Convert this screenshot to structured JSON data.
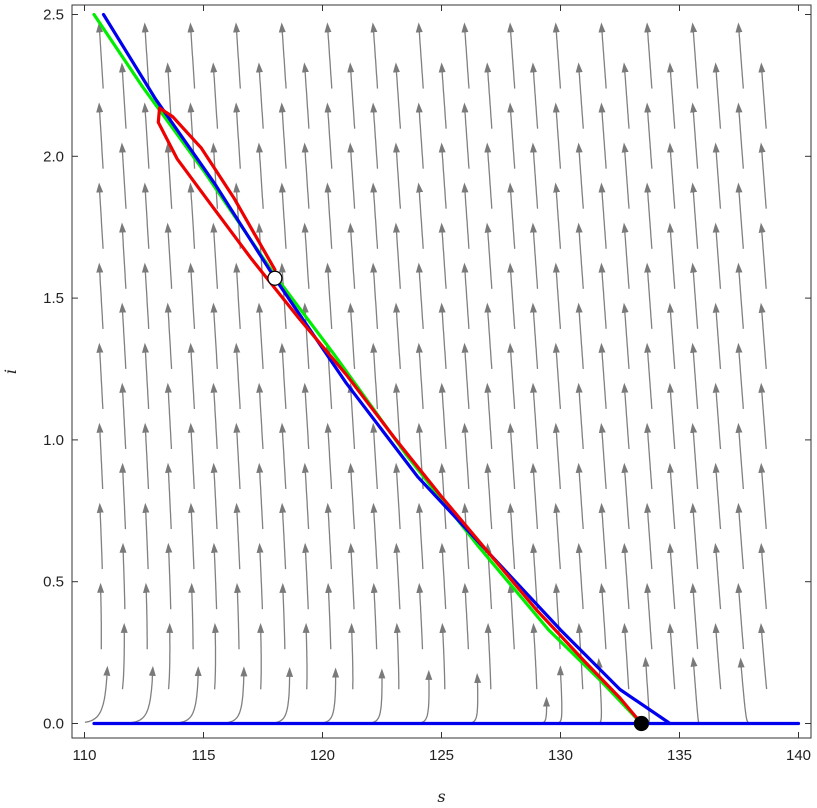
{
  "chart_data": {
    "type": "line",
    "title": "",
    "xlabel": "s",
    "ylabel": "i",
    "xlim": [
      110,
      140
    ],
    "ylim": [
      0,
      2.5
    ],
    "x_ticks": [
      "110",
      "115",
      "120",
      "125",
      "130",
      "135",
      "140"
    ],
    "y_ticks": [
      "0.0",
      "0.5",
      "1.0",
      "1.5",
      "2.0",
      "2.5"
    ],
    "grid": false,
    "legend": "none",
    "stream_color": "#808080",
    "series": [
      {
        "color": "#00ee00",
        "points": [
          [
            110.4,
            2.5
          ],
          [
            112.4,
            2.25
          ],
          [
            115.0,
            1.95
          ],
          [
            118.0,
            1.58
          ],
          [
            120.5,
            1.3
          ],
          [
            123.5,
            0.95
          ],
          [
            126.5,
            0.63
          ],
          [
            129.5,
            0.33
          ],
          [
            131.7,
            0.15
          ],
          [
            133.4,
            0.0
          ]
        ]
      },
      {
        "color": "#0000ee",
        "points": [
          [
            110.8,
            2.5
          ],
          [
            113.0,
            2.2
          ],
          [
            115.5,
            1.9
          ],
          [
            118.0,
            1.57
          ],
          [
            121.0,
            1.2
          ],
          [
            124.0,
            0.87
          ],
          [
            127.0,
            0.6
          ],
          [
            130.0,
            0.33
          ],
          [
            132.5,
            0.12
          ],
          [
            134.6,
            0.0
          ]
        ]
      },
      {
        "color": "#0000ee",
        "points": [
          [
            110.4,
            0.0
          ],
          [
            140.0,
            0.0
          ]
        ]
      },
      {
        "color": "#ee0000",
        "points": [
          [
            118.0,
            1.6
          ],
          [
            116.3,
            1.85
          ],
          [
            114.9,
            2.03
          ],
          [
            113.7,
            2.14
          ],
          [
            113.15,
            2.17
          ],
          [
            113.1,
            2.12
          ],
          [
            113.9,
            1.99
          ],
          [
            115.4,
            1.82
          ],
          [
            117.0,
            1.64
          ],
          [
            119.0,
            1.43
          ],
          [
            121.0,
            1.23
          ],
          [
            123.0,
            1.01
          ],
          [
            125.0,
            0.8
          ],
          [
            127.0,
            0.6
          ],
          [
            129.0,
            0.4
          ],
          [
            131.0,
            0.22
          ],
          [
            132.5,
            0.09
          ],
          [
            133.4,
            0.0
          ]
        ]
      }
    ],
    "points": [
      {
        "x": 118.0,
        "y": 1.57,
        "fill": "#ffffff"
      },
      {
        "x": 133.4,
        "y": 0.0,
        "fill": "#000000"
      }
    ]
  }
}
